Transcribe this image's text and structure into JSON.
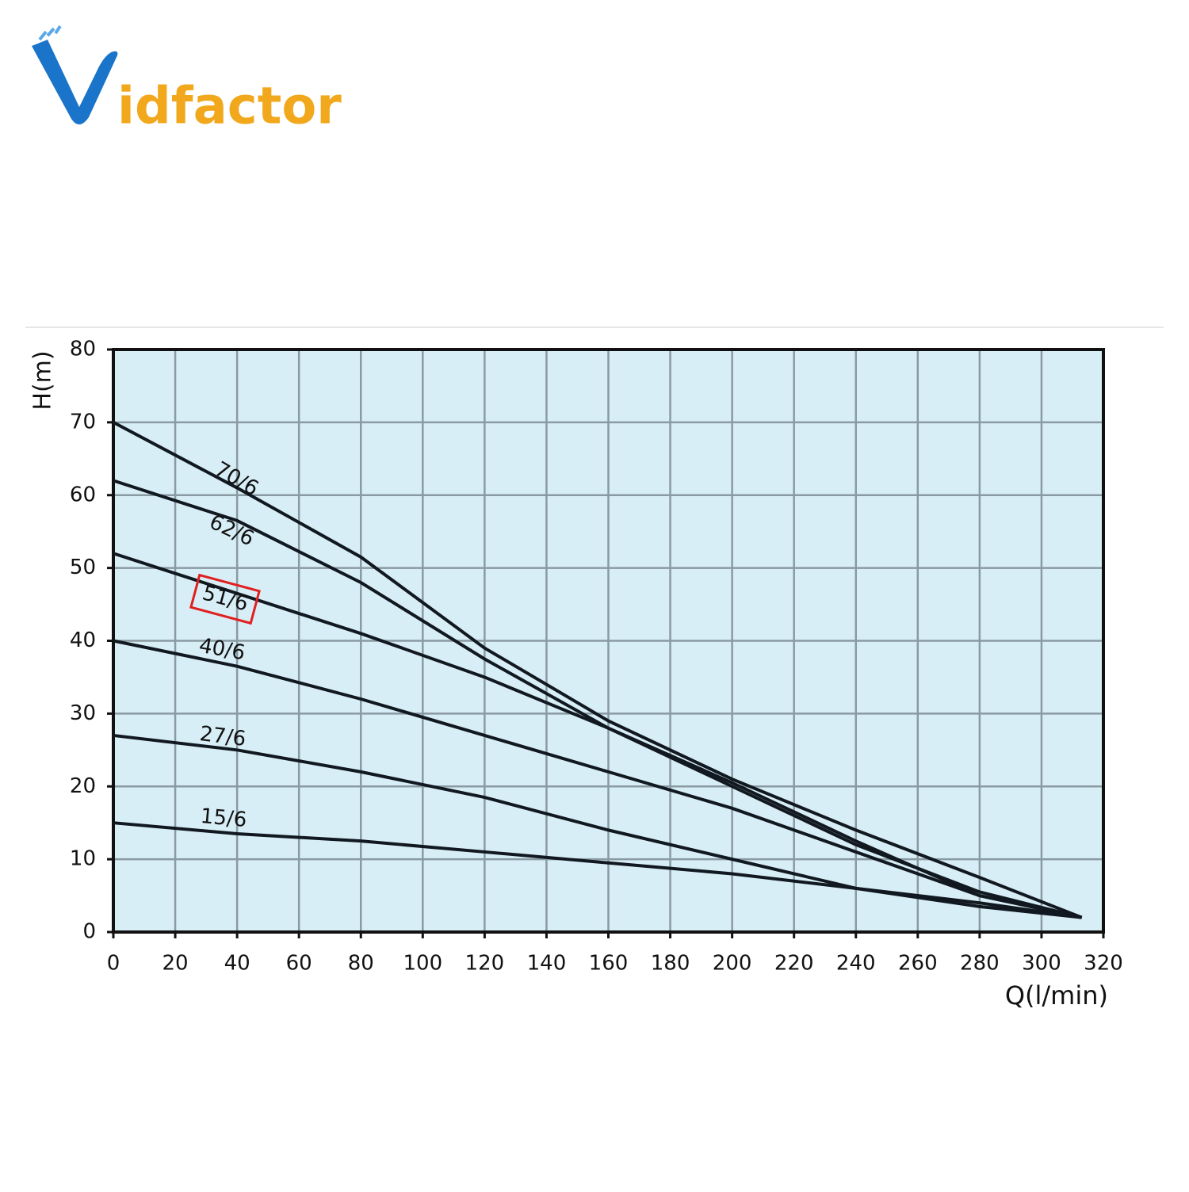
{
  "logo": {
    "text": "idfactor"
  },
  "chart_data": {
    "type": "line",
    "y_label": "H(m)",
    "x_label": "Q(l/min)",
    "x": [
      0,
      40,
      80,
      120,
      160,
      200,
      240,
      280,
      313
    ],
    "series": [
      {
        "name": "70/6",
        "color": "#111820",
        "values": [
          70,
          61,
          51.5,
          39,
          29,
          21,
          14,
          7.5,
          2
        ]
      },
      {
        "name": "62/6",
        "color": "#111820",
        "values": [
          62,
          56.5,
          48,
          37.5,
          28,
          20,
          12,
          5.5,
          2
        ]
      },
      {
        "name": "51/6",
        "color": "#111820",
        "values": [
          52,
          46.5,
          41,
          35,
          28,
          20.5,
          12.5,
          5,
          2
        ]
      },
      {
        "name": "40/6",
        "color": "#111820",
        "values": [
          40,
          36.5,
          32,
          27,
          22,
          17,
          11,
          5,
          2
        ]
      },
      {
        "name": "27/6",
        "color": "#111820",
        "values": [
          27,
          25,
          22,
          18.5,
          14,
          10,
          6,
          3.5,
          2
        ]
      },
      {
        "name": "15/6",
        "color": "#111820",
        "values": [
          15,
          13.5,
          12.5,
          11,
          9.5,
          8,
          6,
          4,
          2
        ]
      }
    ],
    "xlim": [
      0,
      320
    ],
    "xticks": [
      0,
      20,
      40,
      60,
      80,
      100,
      120,
      140,
      160,
      180,
      200,
      220,
      240,
      260,
      280,
      300,
      320
    ],
    "ylim": [
      0,
      80
    ],
    "yticks": [
      0,
      10,
      20,
      30,
      40,
      50,
      60,
      70,
      80
    ],
    "grid": true,
    "plot_background": "#d8eef6"
  }
}
